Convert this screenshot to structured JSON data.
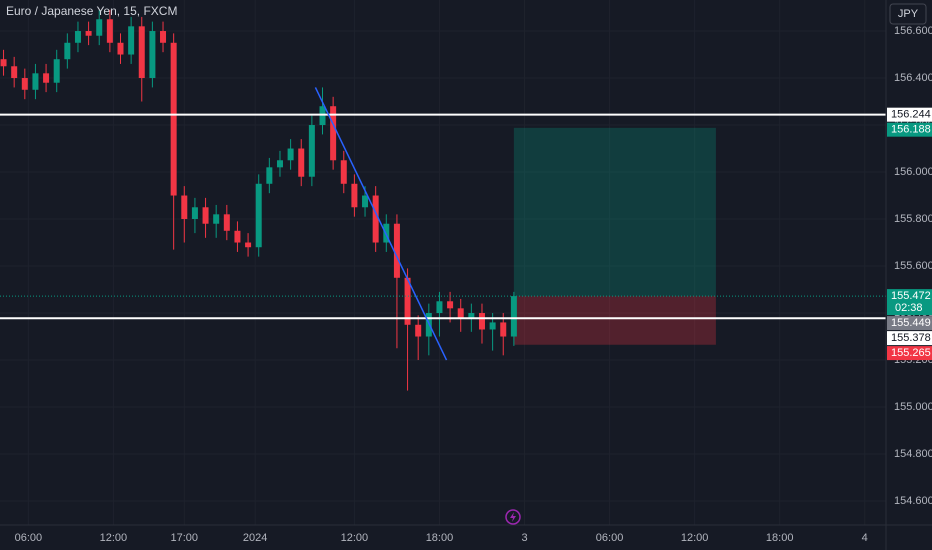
{
  "chart_data": {
    "type": "candlestick",
    "title": "Euro / Japanese Yen, 15, FXCM",
    "currency": "JPY",
    "x": [
      -7,
      -4,
      -1,
      2,
      5,
      8,
      11,
      14,
      17,
      20,
      23,
      26,
      29,
      32,
      35,
      38,
      41,
      44,
      47,
      50,
      53,
      56,
      59,
      62,
      65,
      68,
      71,
      74,
      77,
      80,
      83,
      86,
      89,
      92,
      95,
      98,
      101,
      104,
      107,
      110,
      113,
      116,
      119,
      122,
      125,
      128,
      131,
      134,
      137
    ],
    "open": [
      156.48,
      156.45,
      156.4,
      156.35,
      156.42,
      156.38,
      156.48,
      156.55,
      156.6,
      156.58,
      156.65,
      156.55,
      156.5,
      156.62,
      156.4,
      156.6,
      156.55,
      155.9,
      155.8,
      155.85,
      155.78,
      155.82,
      155.75,
      155.7,
      155.68,
      155.95,
      156.02,
      156.05,
      156.1,
      155.98,
      156.2,
      156.28,
      156.05,
      155.95,
      155.85,
      155.9,
      155.7,
      155.78,
      155.55,
      155.35,
      155.3,
      155.4,
      155.45,
      155.42,
      155.38,
      155.4,
      155.33,
      155.36,
      155.3
    ],
    "high": [
      156.52,
      156.49,
      156.44,
      156.46,
      156.46,
      156.52,
      156.59,
      156.64,
      156.64,
      156.69,
      156.69,
      156.59,
      156.66,
      156.66,
      156.64,
      156.64,
      156.59,
      155.94,
      155.89,
      155.89,
      155.86,
      155.86,
      155.79,
      155.74,
      155.99,
      156.06,
      156.09,
      156.14,
      156.14,
      156.24,
      156.36,
      156.32,
      156.09,
      155.99,
      155.94,
      155.94,
      155.82,
      155.82,
      155.59,
      155.39,
      155.44,
      155.49,
      155.49,
      155.46,
      155.44,
      155.44,
      155.4,
      155.4,
      155.49
    ],
    "low": [
      156.41,
      156.36,
      156.31,
      156.31,
      156.34,
      156.34,
      156.44,
      156.51,
      156.54,
      156.54,
      156.51,
      156.46,
      156.46,
      156.3,
      156.36,
      156.51,
      155.67,
      155.7,
      155.74,
      155.72,
      155.72,
      155.71,
      155.66,
      155.64,
      155.64,
      155.91,
      155.98,
      156.01,
      155.94,
      155.94,
      156.16,
      156.01,
      155.91,
      155.81,
      155.81,
      155.66,
      155.66,
      155.25,
      155.07,
      155.2,
      155.22,
      155.3,
      155.36,
      155.32,
      155.32,
      155.27,
      155.24,
      155.22,
      155.26
    ],
    "close": [
      156.45,
      156.4,
      156.35,
      156.42,
      156.38,
      156.48,
      156.55,
      156.6,
      156.58,
      156.65,
      156.55,
      156.5,
      156.62,
      156.4,
      156.6,
      156.55,
      155.9,
      155.8,
      155.85,
      155.78,
      155.82,
      155.75,
      155.7,
      155.68,
      155.95,
      156.02,
      156.05,
      156.1,
      155.98,
      156.2,
      156.28,
      156.05,
      155.95,
      155.85,
      155.9,
      155.7,
      155.78,
      155.55,
      155.35,
      155.3,
      155.4,
      155.45,
      155.42,
      155.38,
      155.4,
      155.33,
      155.36,
      155.3,
      155.472
    ],
    "up_color": "#089981",
    "down_color": "#f23645",
    "xlim": [
      -8,
      242
    ],
    "ylim": [
      154.498,
      156.732
    ],
    "xticks": [
      {
        "value": 0,
        "label": "06:00"
      },
      {
        "value": 24,
        "label": "12:00"
      },
      {
        "value": 44,
        "label": "17:00"
      },
      {
        "value": 64,
        "label": "2024"
      },
      {
        "value": 92,
        "label": "12:00"
      },
      {
        "value": 116,
        "label": "18:00"
      },
      {
        "value": 140,
        "label": "3"
      },
      {
        "value": 164,
        "label": "06:00"
      },
      {
        "value": 188,
        "label": "12:00"
      },
      {
        "value": 212,
        "label": "18:00"
      },
      {
        "value": 236,
        "label": "4"
      }
    ],
    "yticks": [
      {
        "value": 156.6,
        "label": "156.600"
      },
      {
        "value": 156.4,
        "label": "156.400"
      },
      {
        "value": 156.2,
        "label": "156.200"
      },
      {
        "value": 156.0,
        "label": "156.000"
      },
      {
        "value": 155.8,
        "label": "155.800"
      },
      {
        "value": 155.6,
        "label": "155.600"
      },
      {
        "value": 155.4,
        "label": "155.400"
      },
      {
        "value": 155.2,
        "label": "155.200"
      },
      {
        "value": 155.0,
        "label": "155.000"
      },
      {
        "value": 154.8,
        "label": "154.800"
      },
      {
        "value": 154.6,
        "label": "154.600"
      }
    ],
    "grid": true,
    "levels": [
      156.244,
      155.378
    ],
    "trendline": {
      "x": [
        81,
        118
      ],
      "y": [
        156.36,
        155.2
      ],
      "color": "#2962ff"
    },
    "position": {
      "x": [
        137,
        194
      ],
      "entry": 155.472,
      "target": 156.188,
      "stop": 155.265
    },
    "last_price": 155.472,
    "countdown": "02:38",
    "marker_price": 155.449
  }
}
